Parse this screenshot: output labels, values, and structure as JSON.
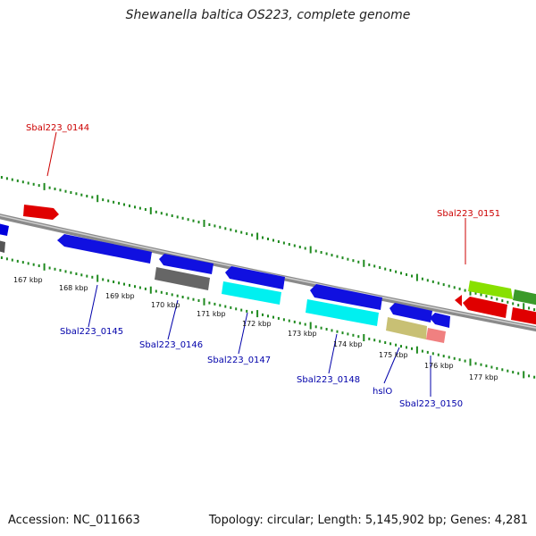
{
  "title": "Shewanella baltica OS223, complete genome",
  "footer": {
    "accession": "Accession: NC_011663",
    "summary": "Topology: circular; Length: 5,145,902 bp; Genes: 4,281"
  },
  "colors": {
    "backbone": "#8a8a8a",
    "tick": "#1f8a1f",
    "label_top": "#cc0000",
    "label_bottom": "#0000aa"
  },
  "scale_labels": [
    "167 kbp",
    "168 kbp",
    "169 kbp",
    "170 kbp",
    "171 kbp",
    "172 kbp",
    "173 kbp",
    "174 kbp",
    "175 kbp",
    "176 kbp",
    "177 kbp"
  ],
  "gene_labels_top": [
    "Sbal223_0144",
    "Sbal223_0151"
  ],
  "gene_labels_bottom": [
    "Sbal223_0145",
    "Sbal223_0146",
    "Sbal223_0147",
    "Sbal223_0148",
    "hslO",
    "Sbal223_0150"
  ]
}
